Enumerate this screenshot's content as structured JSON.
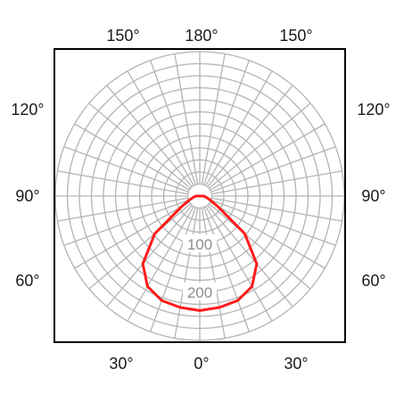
{
  "chart_data": {
    "type": "line",
    "subtype": "polar-photometric",
    "title": "",
    "xlabel": "",
    "ylabel": "",
    "radial_range": [
      0,
      300
    ],
    "radial_ring_step": 25,
    "radial_labels": [
      {
        "value": 100,
        "text": "100"
      },
      {
        "value": 200,
        "text": "200"
      }
    ],
    "angle_spoke_step_deg": 10,
    "angle_labels_top": [
      "150°",
      "180°",
      "150°"
    ],
    "angle_labels_left": [
      "120°",
      "90°",
      "60°"
    ],
    "angle_labels_right": [
      "120°",
      "90°",
      "60°"
    ],
    "angle_labels_bottom": [
      "30°",
      "0°",
      "30°"
    ],
    "grid": true,
    "grid_color": "#b4b4b4",
    "series_color": "#ff1a1a",
    "frame_color": "#000000",
    "series": [
      {
        "angle": [
          0,
          10,
          20,
          30,
          40,
          50,
          60,
          70,
          80,
          90
        ],
        "value": [
          238,
          235,
          231,
          217,
          184,
          122,
          43,
          22,
          13,
          8
        ]
      }
    ]
  }
}
